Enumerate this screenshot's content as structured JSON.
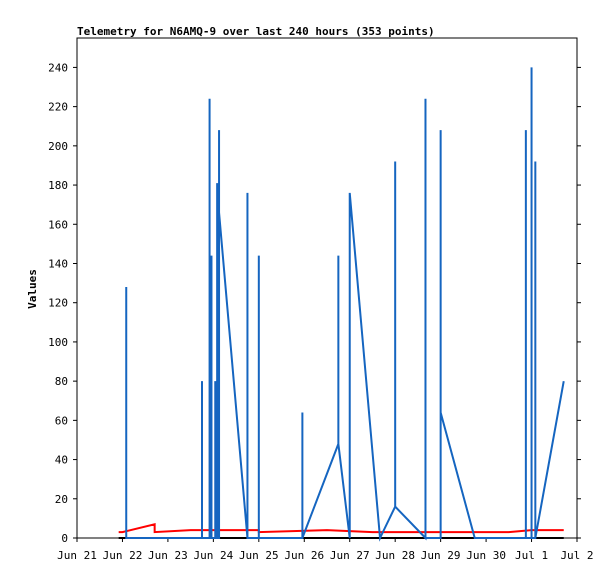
{
  "chart_data": {
    "type": "line",
    "title": "Telemetry for N6AMQ-9 over last 240 hours (353 points)",
    "xlabel": "",
    "ylabel": "Values",
    "x_axis_type": "date",
    "xlim": [
      "2025-06-21T00:00",
      "2025-07-02T00:00"
    ],
    "ylim": [
      0,
      255
    ],
    "grid": false,
    "x_tick_labels": [
      "Jun 21",
      "Jun 22",
      "Jun 23",
      "Jun 24",
      "Jun 25",
      "Jun 26",
      "Jun 27",
      "Jun 28",
      "Jun 29",
      "Jun 30",
      "Jul 1",
      "Jul 2"
    ],
    "x_ticks": [
      "2025-06-21T00:00",
      "2025-06-22T00:00",
      "2025-06-23T00:00",
      "2025-06-24T00:00",
      "2025-06-25T00:00",
      "2025-06-26T00:00",
      "2025-06-27T00:00",
      "2025-06-28T00:00",
      "2025-06-29T00:00",
      "2025-06-30T00:00",
      "2025-07-01T00:00",
      "2025-07-02T00:00"
    ],
    "y_ticks": [
      0,
      20,
      40,
      60,
      80,
      100,
      120,
      140,
      160,
      180,
      200,
      220,
      240
    ],
    "series": [
      {
        "color": "#000000",
        "points": [
          [
            "2025-06-21T22:00",
            0
          ],
          [
            "2025-07-01T17:00",
            0
          ]
        ]
      },
      {
        "color": "#ff0000",
        "points": [
          [
            "2025-06-21T22:00",
            3
          ],
          [
            "2025-06-22T00:00",
            3
          ],
          [
            "2025-06-22T17:00",
            7
          ],
          [
            "2025-06-22T17:00",
            3
          ],
          [
            "2025-06-23T12:00",
            4
          ],
          [
            "2025-06-24T00:00",
            4
          ],
          [
            "2025-06-25T00:00",
            4
          ],
          [
            "2025-06-25T00:00",
            3
          ],
          [
            "2025-06-26T12:00",
            4
          ],
          [
            "2025-06-27T12:00",
            3
          ],
          [
            "2025-06-28T06:00",
            3
          ],
          [
            "2025-06-29T12:00",
            3
          ],
          [
            "2025-06-30T06:00",
            3
          ],
          [
            "2025-06-30T12:00",
            3
          ],
          [
            "2025-07-01T00:00",
            4
          ],
          [
            "2025-07-01T17:00",
            4
          ]
        ]
      },
      {
        "color": "#1565c0",
        "points": [
          [
            "2025-06-22T02:00",
            0
          ],
          [
            "2025-06-22T02:00",
            128
          ],
          [
            "2025-06-22T02:00",
            0
          ],
          [
            "2025-06-23T18:00",
            0
          ],
          [
            "2025-06-23T18:00",
            80
          ],
          [
            "2025-06-23T18:00",
            0
          ],
          [
            "2025-06-23T22:00",
            0
          ],
          [
            "2025-06-23T22:00",
            224
          ],
          [
            "2025-06-23T22:00",
            0
          ],
          [
            "2025-06-23T23:00",
            0
          ],
          [
            "2025-06-23T23:00",
            144
          ],
          [
            "2025-06-23T23:00",
            0
          ],
          [
            "2025-06-24T01:00",
            0
          ],
          [
            "2025-06-24T01:00",
            80
          ],
          [
            "2025-06-24T01:00",
            0
          ],
          [
            "2025-06-24T02:00",
            0
          ],
          [
            "2025-06-24T02:00",
            181
          ],
          [
            "2025-06-24T02:00",
            0
          ],
          [
            "2025-06-24T03:00",
            0
          ],
          [
            "2025-06-24T03:00",
            208
          ],
          [
            "2025-06-24T03:00",
            166
          ],
          [
            "2025-06-24T18:00",
            0
          ],
          [
            "2025-06-24T18:00",
            176
          ],
          [
            "2025-06-24T18:00",
            0
          ],
          [
            "2025-06-25T00:00",
            0
          ],
          [
            "2025-06-25T00:00",
            144
          ],
          [
            "2025-06-25T00:00",
            0
          ],
          [
            "2025-06-25T23:00",
            0
          ],
          [
            "2025-06-25T23:00",
            64
          ],
          [
            "2025-06-25T23:00",
            0
          ],
          [
            "2025-06-26T18:00",
            48
          ],
          [
            "2025-06-26T18:00",
            144
          ],
          [
            "2025-06-26T18:00",
            48
          ],
          [
            "2025-06-27T00:00",
            0
          ],
          [
            "2025-06-27T00:00",
            176
          ],
          [
            "2025-06-27T16:00",
            0
          ],
          [
            "2025-06-28T00:00",
            16
          ],
          [
            "2025-06-28T00:00",
            192
          ],
          [
            "2025-06-28T00:00",
            16
          ],
          [
            "2025-06-28T16:00",
            0
          ],
          [
            "2025-06-28T16:00",
            224
          ],
          [
            "2025-06-28T16:00",
            0
          ],
          [
            "2025-06-29T00:00",
            0
          ],
          [
            "2025-06-29T00:00",
            208
          ],
          [
            "2025-06-29T00:00",
            64
          ],
          [
            "2025-06-29T18:00",
            0
          ],
          [
            "2025-06-30T21:00",
            0
          ],
          [
            "2025-06-30T21:00",
            208
          ],
          [
            "2025-06-30T21:00",
            0
          ],
          [
            "2025-07-01T00:00",
            0
          ],
          [
            "2025-07-01T00:00",
            240
          ],
          [
            "2025-07-01T00:00",
            0
          ],
          [
            "2025-07-01T02:00",
            0
          ],
          [
            "2025-07-01T02:00",
            192
          ],
          [
            "2025-07-01T02:00",
            0
          ],
          [
            "2025-07-01T17:00",
            80
          ]
        ]
      }
    ]
  }
}
